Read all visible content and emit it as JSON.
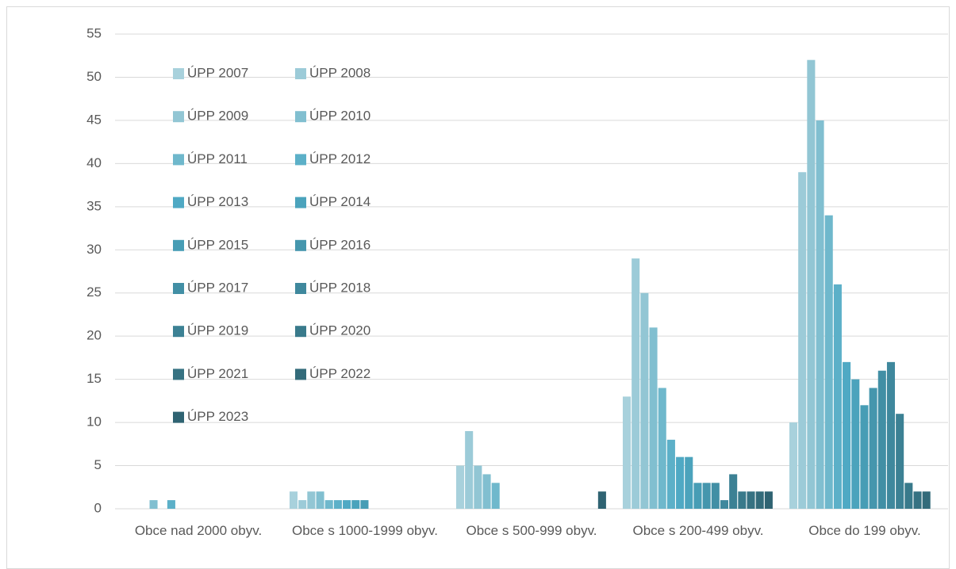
{
  "chart_data": {
    "type": "bar",
    "categories": [
      "Obce nad 2000 obyv.",
      "Obce s 1000-1999 obyv.",
      "Obce s 500-999 obyv.",
      "Obce s 200-499 obyv.",
      "Obce do 199 obyv."
    ],
    "series": [
      {
        "name": "ÚPP 2007",
        "color": "#a8d1dc",
        "values": [
          0,
          2,
          5,
          13,
          10
        ]
      },
      {
        "name": "ÚPP 2008",
        "color": "#9ccbd8",
        "values": [
          0,
          1,
          9,
          29,
          39
        ]
      },
      {
        "name": "ÚPP 2009",
        "color": "#92c6d4",
        "values": [
          0,
          2,
          5,
          25,
          52
        ]
      },
      {
        "name": "ÚPP 2010",
        "color": "#81bfd0",
        "values": [
          1,
          2,
          4,
          21,
          45
        ]
      },
      {
        "name": "ÚPP 2011",
        "color": "#6fb8cc",
        "values": [
          0,
          1,
          3,
          14,
          34
        ]
      },
      {
        "name": "ÚPP 2012",
        "color": "#5cb0c8",
        "values": [
          1,
          1,
          0,
          8,
          26
        ]
      },
      {
        "name": "ÚPP 2013",
        "color": "#4fa9c4",
        "values": [
          0,
          1,
          0,
          6,
          17
        ]
      },
      {
        "name": "ÚPP 2014",
        "color": "#4ba3bc",
        "values": [
          0,
          1,
          0,
          6,
          15
        ]
      },
      {
        "name": "ÚPP 2015",
        "color": "#479db5",
        "values": [
          0,
          1,
          0,
          3,
          12
        ]
      },
      {
        "name": "ÚPP 2016",
        "color": "#4596ad",
        "values": [
          0,
          0,
          0,
          3,
          14
        ]
      },
      {
        "name": "ÚPP 2017",
        "color": "#428fa5",
        "values": [
          0,
          0,
          0,
          3,
          16
        ]
      },
      {
        "name": "ÚPP 2018",
        "color": "#3f889d",
        "values": [
          0,
          0,
          0,
          1,
          17
        ]
      },
      {
        "name": "ÚPP 2019",
        "color": "#3c8194",
        "values": [
          0,
          0,
          0,
          4,
          11
        ]
      },
      {
        "name": "ÚPP 2020",
        "color": "#397a8b",
        "values": [
          0,
          0,
          0,
          2,
          3
        ]
      },
      {
        "name": "ÚPP 2021",
        "color": "#367282",
        "values": [
          0,
          0,
          0,
          2,
          2
        ]
      },
      {
        "name": "ÚPP 2022",
        "color": "#336b7a",
        "values": [
          0,
          0,
          0,
          2,
          2
        ]
      },
      {
        "name": "ÚPP 2023",
        "color": "#2f6372",
        "values": [
          0,
          0,
          2,
          2,
          0
        ]
      }
    ],
    "ylim": [
      0,
      55
    ],
    "yticks": [
      0,
      5,
      10,
      15,
      20,
      25,
      30,
      35,
      40,
      45,
      50,
      55
    ],
    "grid": true,
    "legend": "upper-left"
  }
}
